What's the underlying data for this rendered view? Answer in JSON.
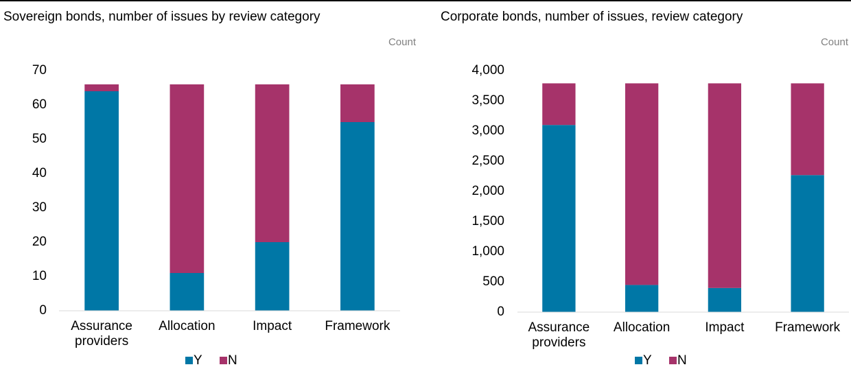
{
  "chart_data": [
    {
      "type": "bar",
      "stacked": true,
      "title": "Sovereign bonds, number of issues by review category",
      "y_label": "Count",
      "categories": [
        "Assurance providers",
        "Allocation",
        "Impact",
        "Framework"
      ],
      "series": [
        {
          "name": "Y",
          "color": "#0077a6",
          "values": [
            64,
            11,
            20,
            55
          ]
        },
        {
          "name": "N",
          "color": "#a6336a",
          "values": [
            2,
            55,
            46,
            11
          ]
        }
      ],
      "ylim": [
        0,
        70
      ],
      "yticks": [
        0,
        10,
        20,
        30,
        40,
        50,
        60,
        70
      ],
      "grid": false,
      "legend": "bottom"
    },
    {
      "type": "bar",
      "stacked": true,
      "title": "Corporate bonds, number of issues, review category",
      "y_label": "Count",
      "categories": [
        "Assurance providers",
        "Allocation",
        "Impact",
        "Framework"
      ],
      "series": [
        {
          "name": "Y",
          "color": "#0077a6",
          "values": [
            3100,
            450,
            400,
            2270
          ]
        },
        {
          "name": "N",
          "color": "#a6336a",
          "values": [
            690,
            3340,
            3390,
            1520
          ]
        }
      ],
      "ylim": [
        0,
        4000
      ],
      "yticks": [
        0,
        500,
        {
          "value": 1000,
          "label": "1,000"
        },
        {
          "value": 1500,
          "label": "1,500"
        },
        {
          "value": 2000,
          "label": "2,000"
        },
        {
          "value": 2500,
          "label": "2,500"
        },
        {
          "value": 3000,
          "label": "3,000"
        },
        {
          "value": 3500,
          "label": "3,500"
        },
        {
          "value": 4000,
          "label": "4,000"
        }
      ],
      "grid": false,
      "legend": "bottom"
    }
  ]
}
